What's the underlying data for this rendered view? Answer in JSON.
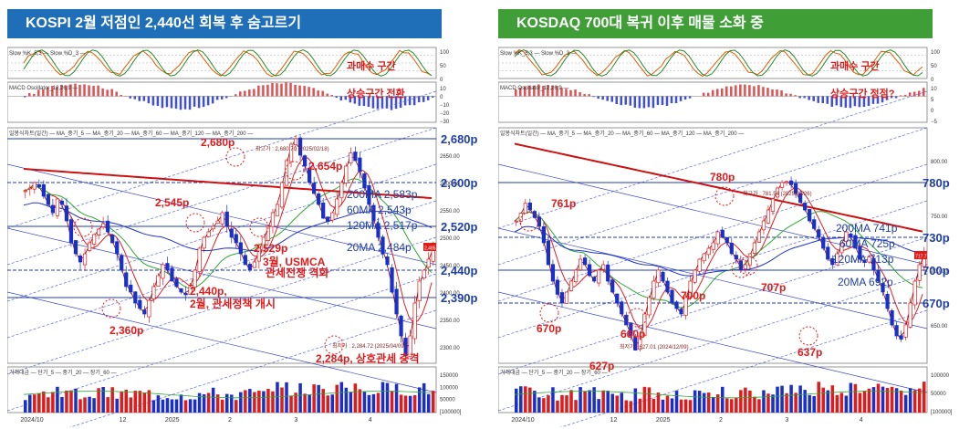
{
  "colors": {
    "banner_left": "#1f6fb8",
    "banner_right": "#3f9e36",
    "annotation_red": "#e01b1b",
    "level_blue": "#1f3ea8",
    "ma5": "#8b0000",
    "ma20": "#e02020",
    "ma60": "#2fa832",
    "ma120": "#2233cc",
    "ma200": "#cc1111",
    "candle_up": "#e01b1b",
    "candle_down": "#1a2fc8"
  },
  "chart_data": [
    {
      "type": "candlestick",
      "title": "KOSPI 2월 저점인 2,440선 회복 후 숨고르기",
      "stoch_label": "Slow %K_5,3 — Slow %D_3 —",
      "stoch_ticks": [
        "100",
        "50",
        "0"
      ],
      "stoch_note": "과매수 구간",
      "macd_label": "MACD Oscillator_12,26,9 —",
      "macd_ticks": [
        "10",
        "0",
        "−10",
        "−20",
        "−30"
      ],
      "macd_note": "상승구간 전환",
      "price_label": "일봉식차트(일간) — MA_중기_5 — MA_중기_20 — MA_중기_60 — MA_중기_120 — MA_중기_200 —",
      "price_ticks": [
        "2650.00",
        "2600.00",
        "2550.00",
        "2500.00",
        "2450.00",
        "2400.00",
        "2350.00",
        "2300.00"
      ],
      "price_range": [
        2270,
        2700
      ],
      "volume_label": "거래대금 — 단기_5 — 중기_20 — 장기_60 —",
      "volume_ticks": [
        "150000",
        "100000",
        "50000",
        "[100000]"
      ],
      "x_ticks": [
        "2024/10",
        "12",
        "2025",
        "2",
        "3",
        "4"
      ],
      "levels": [
        {
          "label": "2,680p",
          "value": 2680
        },
        {
          "label": "2,600p",
          "value": 2600
        },
        {
          "label": "2,520p",
          "value": 2520
        },
        {
          "label": "2,440p",
          "value": 2440
        },
        {
          "label": "2,390p",
          "value": 2390
        }
      ],
      "ma_labels": [
        "200MA 2,583p",
        "60MA 2,543p",
        "120MA 2,517p",
        "20MA 2,484p"
      ],
      "annotations": [
        "2,680p",
        "2,654p",
        "2,545p",
        "2,529p",
        "3월, USMCA",
        "관세전쟁 격화",
        "2,440p,",
        "2월, 관세정책 개시",
        "2,360p",
        "2,284p, 상호관세 충격"
      ],
      "small_notes": [
        "최고가 : 2,680.70 (2025/02/18)",
        "최저가 : 2,284.72 (2025/04/09)",
        "2,485.42"
      ],
      "price_path": [
        2585,
        2590,
        2600,
        2592,
        2575,
        2560,
        2545,
        2570,
        2560,
        2530,
        2490,
        2470,
        2455,
        2470,
        2490,
        2505,
        2515,
        2525,
        2510,
        2490,
        2470,
        2440,
        2410,
        2400,
        2380,
        2370,
        2360,
        2385,
        2410,
        2430,
        2450,
        2440,
        2420,
        2410,
        2400,
        2395,
        2410,
        2440,
        2480,
        2500,
        2510,
        2520,
        2530,
        2545,
        2520,
        2500,
        2490,
        2470,
        2450,
        2440,
        2455,
        2480,
        2500,
        2520,
        2545,
        2560,
        2600,
        2640,
        2670,
        2680,
        2650,
        2630,
        2600,
        2580,
        2560,
        2535,
        2529,
        2545,
        2570,
        2600,
        2630,
        2654,
        2640,
        2620,
        2590,
        2560,
        2530,
        2500,
        2470,
        2450,
        2400,
        2360,
        2320,
        2284,
        2320,
        2380,
        2420,
        2440,
        2460,
        2485
      ]
    },
    {
      "type": "candlestick",
      "title": "KOSDAQ 700대 복귀 이후 매물 소화 중",
      "stoch_label": "Slow %K_5,3 — Slow %D_3 —",
      "stoch_ticks": [
        "100",
        "50",
        "0"
      ],
      "stoch_note": "과매수 구간",
      "macd_label": "MACD Oscillator_12,26,9 —",
      "macd_ticks": [
        "10",
        "5",
        "0",
        "−5"
      ],
      "macd_note": "상승구간 정점?",
      "price_label": "일봉식차트(일간) — MA_중기_5 — MA_중기_20 — MA_중기_60 — MA_중기_120 — MA_중기_200 —",
      "price_ticks": [
        "800.00",
        "750.00",
        "700.00",
        "650.00"
      ],
      "price_range": [
        615,
        830
      ],
      "volume_label": "거래대금 — 단기_5 — 중기_20 — 장기_60 —",
      "volume_ticks": [
        "100000",
        "50000",
        "[100000]"
      ],
      "x_ticks": [
        "2024/10",
        "12",
        "2025",
        "2",
        "3",
        "4"
      ],
      "levels": [
        {
          "label": "780p",
          "value": 780
        },
        {
          "label": "730p",
          "value": 730
        },
        {
          "label": "700p",
          "value": 700
        },
        {
          "label": "670p",
          "value": 670
        }
      ],
      "ma_labels": [
        "200MA 741p",
        "60MA 725p",
        "120MA 713p",
        "20MA 692p"
      ],
      "annotations": [
        "780p",
        "761p",
        "670p",
        "660p",
        "627p",
        "700p",
        "707p",
        "637p"
      ],
      "small_notes": [
        "최고가 : 781.54 (2025/02/26)",
        "최저가 : 627.01 (2024/12/09)",
        "717.77"
      ],
      "price_path": [
        745,
        752,
        761,
        755,
        748,
        740,
        725,
        705,
        690,
        678,
        670,
        680,
        690,
        700,
        710,
        705,
        695,
        690,
        700,
        705,
        690,
        680,
        670,
        660,
        650,
        640,
        627,
        640,
        660,
        675,
        690,
        700,
        690,
        680,
        670,
        665,
        660,
        675,
        690,
        700,
        710,
        715,
        720,
        725,
        735,
        730,
        725,
        715,
        710,
        700,
        705,
        715,
        725,
        735,
        745,
        755,
        765,
        775,
        780,
        781,
        778,
        770,
        762,
        755,
        745,
        738,
        730,
        720,
        710,
        705,
        715,
        725,
        735,
        730,
        720,
        710,
        707,
        712,
        700,
        690,
        680,
        665,
        650,
        640,
        637,
        650,
        670,
        690,
        705,
        717
      ]
    }
  ]
}
